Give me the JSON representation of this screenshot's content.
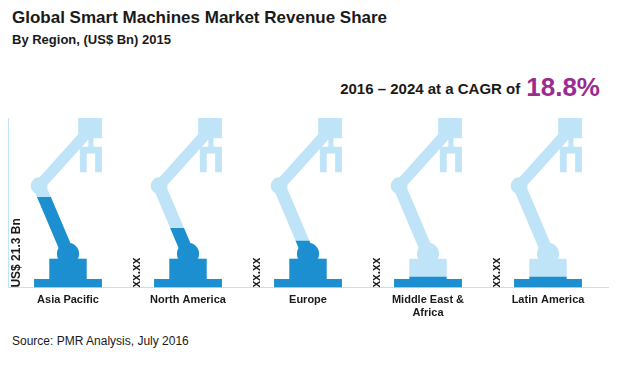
{
  "chart_data": {
    "type": "bar",
    "title": "Global Smart Machines Market Revenue Share",
    "subtitle": "By Region, (US$ Bn) 2015",
    "annotations": [
      "2016 – 2024 at a CAGR of",
      "18.8%",
      "Source: PMR Analysis, July 2016"
    ],
    "categories": [
      "Asia Pacific",
      "North America",
      "Europe",
      "Middle East & Africa",
      "Latin America"
    ],
    "values": [
      21.3,
      14,
      11,
      2.5,
      2.5
    ],
    "value_labels": [
      "US$ 21.3 Bn",
      "xx.xx",
      "xx.xx",
      "xx.xx",
      "xx.xx"
    ],
    "color": "#1b8fd0",
    "ylim": [
      0,
      40
    ],
    "grid": false,
    "data_labels": true,
    "tick_labels": "x"
  }
}
